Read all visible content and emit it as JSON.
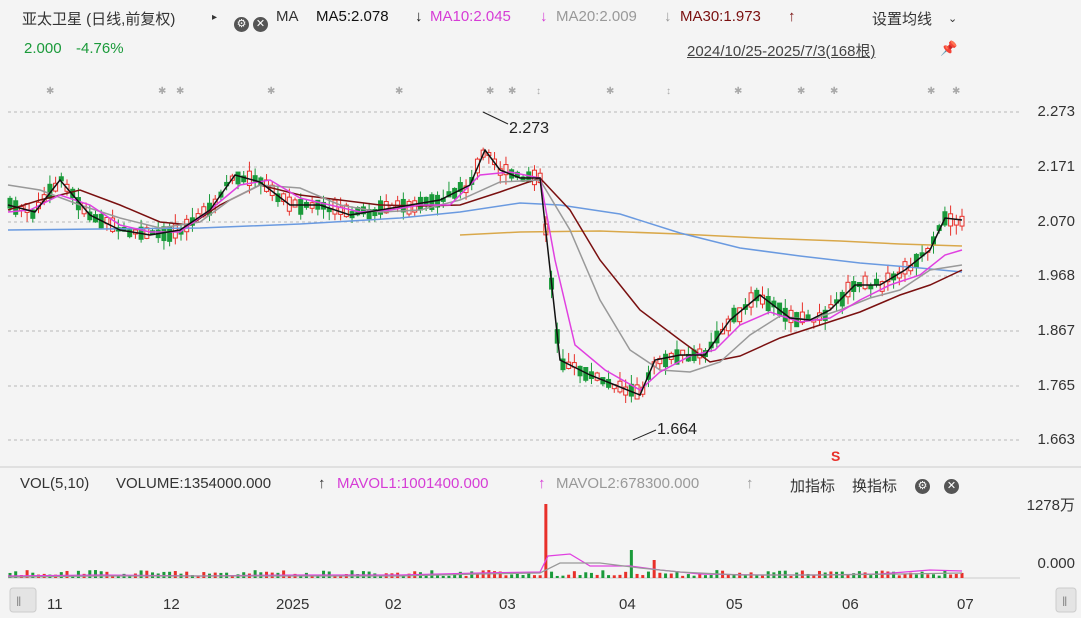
{
  "header": {
    "title": "亚太卫星 (日线,前复权)",
    "ma_label": "MA",
    "ma5": "MA5:2.078",
    "ma10": "MA10:2.045",
    "ma20": "MA20:2.009",
    "ma30": "MA30:1.973",
    "down_arrow": "↓",
    "up_arrow": "↑",
    "settings": "设置均线"
  },
  "quote": {
    "price": "2.000",
    "change": "-4.76%"
  },
  "range": "2024/10/25-2025/7/3(168根)",
  "price_axis": [
    "2.273",
    "2.171",
    "2.070",
    "1.968",
    "1.867",
    "1.765",
    "1.663"
  ],
  "annotations": {
    "high": "2.273",
    "low": "1.664",
    "s_mark": "S"
  },
  "volume": {
    "vol_label": "VOL(5,10)",
    "volume": "VOLUME:1354000.000",
    "mavol1": "MAVOL1:1001400.000",
    "mavol2": "MAVOL2:678300.000",
    "add_indicator": "加指标",
    "switch_indicator": "换指标",
    "axis_top": "1278万",
    "axis_zero": "0.000"
  },
  "x_axis": [
    "11",
    "12",
    "2025",
    "02",
    "03",
    "04",
    "05",
    "06",
    "07"
  ],
  "colors": {
    "up": "#e8302a",
    "down": "#1a9a3a",
    "ma5": "#111111",
    "ma10": "#e040e0",
    "ma20": "#999999",
    "ma30": "#7a1010",
    "ma60": "#6a9ae0",
    "ma120": "#d9a84a"
  },
  "chart_data": {
    "type": "candlestick",
    "title": "",
    "ylim": [
      1.663,
      2.273
    ],
    "date_range": "2024/10/25-2025/7/3",
    "bars": 168,
    "series": [
      {
        "name": "MA5",
        "value": 2.078
      },
      {
        "name": "MA10",
        "value": 2.045
      },
      {
        "name": "MA20",
        "value": 2.009
      },
      {
        "name": "MA30",
        "value": 1.973
      }
    ],
    "high": 2.273,
    "low": 1.664,
    "last_close": 2.0,
    "change_pct": -4.76
  }
}
